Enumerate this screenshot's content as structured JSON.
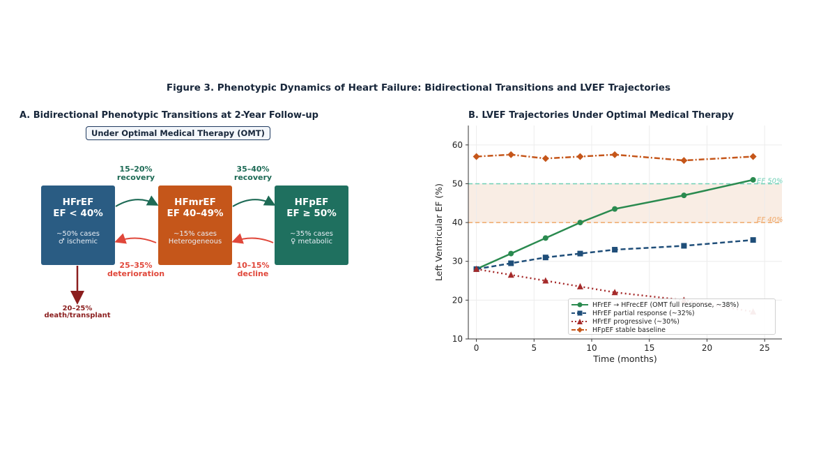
{
  "figure_title": "Figure 3. Phenotypic Dynamics of Heart Failure: Bidirectional Transitions and LVEF Trajectories",
  "panel_a": {
    "title": "A. Bidirectional Phenotypic Transitions at 2-Year Follow-up",
    "subtitle_box": "Under Optimal Medical Therapy (OMT)",
    "boxes": [
      {
        "name": "HFrEF",
        "ef": "EF < 40%",
        "line1": "~50% cases",
        "line2": "♂ ischemic",
        "color": "#2a5c83"
      },
      {
        "name": "HFmrEF",
        "ef": "EF 40–49%",
        "line1": "~15% cases",
        "line2": "Heterogeneous",
        "color": "#c5561a"
      },
      {
        "name": "HFpEF",
        "ef": "EF ≥ 50%",
        "line1": "~35% cases",
        "line2": "♀ metabolic",
        "color": "#1f705f"
      }
    ],
    "transitions": {
      "recovery_1": {
        "pct": "15–20%",
        "label": "recovery"
      },
      "recovery_2": {
        "pct": "35–40%",
        "label": "recovery"
      },
      "deterioration": {
        "pct": "25–35%",
        "label": "deterioration"
      },
      "decline": {
        "pct": "10–15%",
        "label": "decline"
      },
      "death": {
        "pct": "20–25%",
        "label": "death/transplant"
      }
    },
    "colors": {
      "recovery": "#1d6a55",
      "decline": "#e0473a",
      "death": "#8b1e1e"
    }
  },
  "chart_data": {
    "type": "line",
    "title": "B. LVEF Trajectories Under Optimal Medical Therapy",
    "xlabel": "Time (months)",
    "ylabel": "Left Ventricular EF (%)",
    "xlim": [
      -0.7,
      26.5
    ],
    "ylim": [
      10,
      65
    ],
    "xticks": [
      0,
      5,
      10,
      15,
      20,
      25
    ],
    "yticks": [
      10,
      20,
      30,
      40,
      50,
      60
    ],
    "grid": true,
    "legend_position": "lower-right",
    "reference_lines": [
      {
        "y": 50,
        "label": "EF 50%",
        "color": "#6fcfb5"
      },
      {
        "y": 40,
        "label": "EF 40%",
        "color": "#f0a868"
      }
    ],
    "shaded_band": {
      "y0": 40,
      "y1": 50,
      "color": "#f7e6d8"
    },
    "series": [
      {
        "name": "HFrEF → HFrecEF (OMT full response, ~38%)",
        "color": "#2a8a4f",
        "dash": "solid",
        "marker": "circle",
        "x": [
          0,
          3,
          6,
          9,
          12,
          18,
          24
        ],
        "y": [
          28,
          32,
          36,
          40,
          43.5,
          47,
          51
        ]
      },
      {
        "name": "HFrEF partial response (~32%)",
        "color": "#1f4e79",
        "dash": "dashed",
        "marker": "square",
        "x": [
          0,
          3,
          6,
          9,
          12,
          18,
          24
        ],
        "y": [
          28,
          29.5,
          31,
          32,
          33,
          34,
          35.5
        ]
      },
      {
        "name": "HFrEF progressive (~30%)",
        "color": "#a52a2a",
        "dash": "dotted",
        "marker": "triangle",
        "x": [
          0,
          3,
          6,
          9,
          12,
          18,
          24
        ],
        "y": [
          28,
          26.5,
          25,
          23.5,
          22,
          20,
          17
        ]
      },
      {
        "name": "HFpEF stable baseline",
        "color": "#c5561a",
        "dash": "dashdot",
        "marker": "diamond",
        "x": [
          0,
          3,
          6,
          9,
          12,
          18,
          24
        ],
        "y": [
          57,
          57.5,
          56.5,
          57,
          57.5,
          56,
          57
        ]
      }
    ]
  }
}
